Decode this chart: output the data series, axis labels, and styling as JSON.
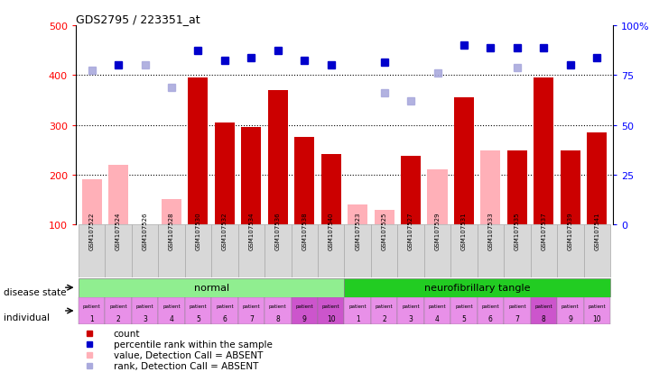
{
  "title": "GDS2795 / 223351_at",
  "samples": [
    "GSM107522",
    "GSM107524",
    "GSM107526",
    "GSM107528",
    "GSM107530",
    "GSM107532",
    "GSM107534",
    "GSM107536",
    "GSM107538",
    "GSM107540",
    "GSM107523",
    "GSM107525",
    "GSM107527",
    "GSM107529",
    "GSM107531",
    "GSM107533",
    "GSM107535",
    "GSM107537",
    "GSM107539",
    "GSM107541"
  ],
  "count_values": [
    190,
    220,
    null,
    150,
    395,
    305,
    295,
    370,
    275,
    242,
    null,
    130,
    238,
    210,
    355,
    null,
    248,
    395,
    248,
    285
  ],
  "absent_value": [
    190,
    220,
    null,
    150,
    null,
    null,
    null,
    null,
    null,
    null,
    140,
    130,
    null,
    210,
    null,
    248,
    null,
    null,
    null,
    null
  ],
  "percentile_values": [
    null,
    420,
    null,
    null,
    450,
    430,
    435,
    450,
    430,
    420,
    null,
    425,
    null,
    null,
    460,
    455,
    455,
    455,
    420,
    435
  ],
  "absent_rank_values": [
    410,
    null,
    420,
    375,
    null,
    null,
    null,
    null,
    null,
    null,
    null,
    365,
    348,
    405,
    null,
    null,
    415,
    null,
    null,
    null
  ],
  "disease_state_groups": [
    {
      "label": "normal",
      "start": 0,
      "end": 10,
      "color": "#90EE90"
    },
    {
      "label": "neurofibrillary tangle",
      "start": 10,
      "end": 20,
      "color": "#22CC22"
    }
  ],
  "individual_colors_light": "#E890E8",
  "individual_colors_dark": "#CC55CC",
  "individual_dark_indices": [
    8,
    9,
    17
  ],
  "ylim_left": [
    100,
    500
  ],
  "ylim_right": [
    0,
    100
  ],
  "yticks_left": [
    100,
    200,
    300,
    400,
    500
  ],
  "yticks_right": [
    0,
    25,
    50,
    75,
    100
  ],
  "bar_color": "#CC0000",
  "absent_bar_color": "#FFB0B8",
  "absent_rank_color": "#AAAADD",
  "percentile_color": "#0000CC",
  "legend_items": [
    {
      "label": "count",
      "color": "#CC0000"
    },
    {
      "label": "percentile rank within the sample",
      "color": "#0000CC"
    },
    {
      "label": "value, Detection Call = ABSENT",
      "color": "#FFB0B8"
    },
    {
      "label": "rank, Detection Call = ABSENT",
      "color": "#AAAADD"
    }
  ],
  "background_color": "#FFFFFF",
  "sample_bg_color": "#D8D8D8",
  "sample_border_color": "#AAAAAA"
}
